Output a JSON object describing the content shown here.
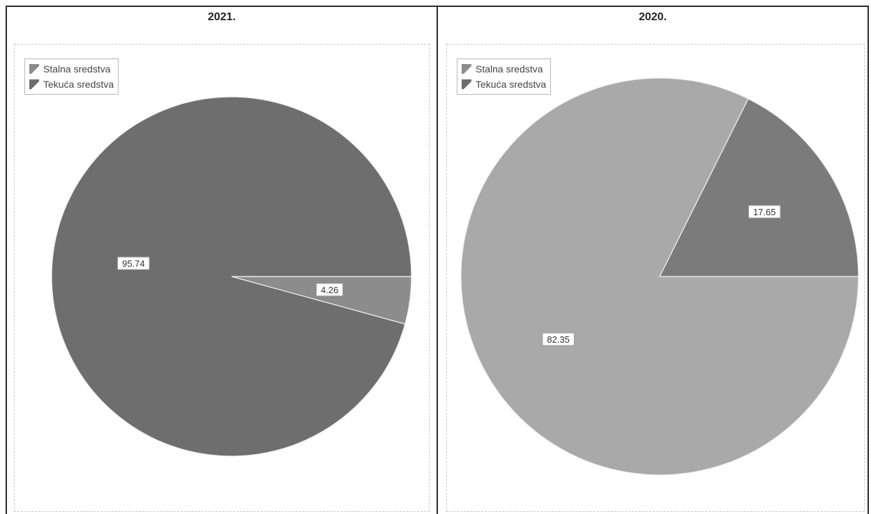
{
  "chart_data": [
    {
      "type": "pie",
      "title": "2021.",
      "legend_position": "top-left",
      "slices": [
        {
          "name": "Stalna sredstva",
          "value": 4.26,
          "label": "4.26",
          "color": "#8c8c8c"
        },
        {
          "name": "Tekuća sredstva",
          "value": 95.74,
          "label": "95.74",
          "color": "#6e6e6e"
        }
      ]
    },
    {
      "type": "pie",
      "title": "2020.",
      "legend_position": "top-left",
      "slices": [
        {
          "name": "Stalna sredstva",
          "value": 82.35,
          "label": "82.35",
          "color": "#a9a9a9"
        },
        {
          "name": "Tekuća sredstva",
          "value": 17.65,
          "label": "17.65",
          "color": "#7b7b7b"
        }
      ]
    }
  ],
  "legend": {
    "items": [
      {
        "label": "Stalna sredstva",
        "color": "#8c8c8c"
      },
      {
        "label": "Tekuća sredstva",
        "color": "#6e6e6e"
      }
    ]
  }
}
